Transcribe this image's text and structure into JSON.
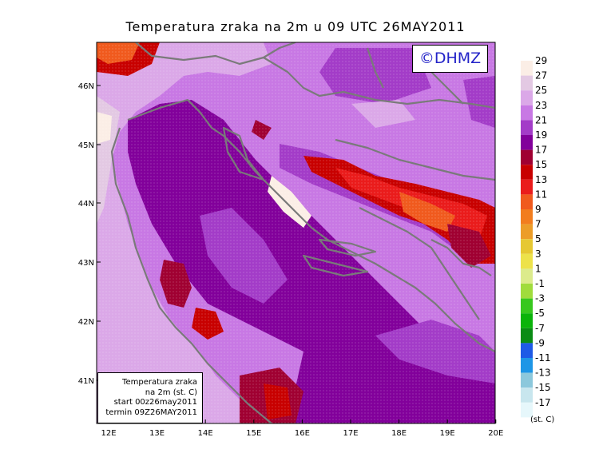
{
  "title": "Temperatura zraka na 2m u 09 UTC 26MAY2011",
  "logo": "©DHMZ",
  "info_box": {
    "line1": "Temperatura zraka",
    "line2": "na 2m (st. C)",
    "line3": "start 00z26may2011",
    "line4": "termin 09Z26MAY2011"
  },
  "lat_labels": [
    "46N",
    "45N",
    "44N",
    "43N",
    "42N",
    "41N"
  ],
  "lon_labels": [
    "12E",
    "13E",
    "14E",
    "15E",
    "16E",
    "17E",
    "18E",
    "19E",
    "20E"
  ],
  "legend": {
    "unit": "(st. C)",
    "labels": [
      "29",
      "27",
      "25",
      "23",
      "21",
      "19",
      "17",
      "15",
      "13",
      "11",
      "9",
      "7",
      "5",
      "3",
      "1",
      "-1",
      "-3",
      "-5",
      "-7",
      "-9",
      "-11",
      "-13",
      "-15",
      "-17"
    ],
    "colors": [
      "#fbeee6",
      "#e3c9e3",
      "#dba8e8",
      "#c878e4",
      "#a33cc8",
      "#82009b",
      "#a00032",
      "#c80000",
      "#ea1c1c",
      "#f05a1e",
      "#f27d1e",
      "#ec9d28",
      "#e6c832",
      "#ede24a",
      "#dceb8c",
      "#a0dc3c",
      "#37c81e",
      "#0ab40a",
      "#0a8c14",
      "#1e5ae6",
      "#1e96e6",
      "#8cc8dc",
      "#c8e6ee",
      "#e6f7fb"
    ]
  },
  "colors": {
    "sea": "#82009b",
    "land_warm": "#a33cc8",
    "land_mid": "#c878e4",
    "coast": "#7a7a7a"
  }
}
